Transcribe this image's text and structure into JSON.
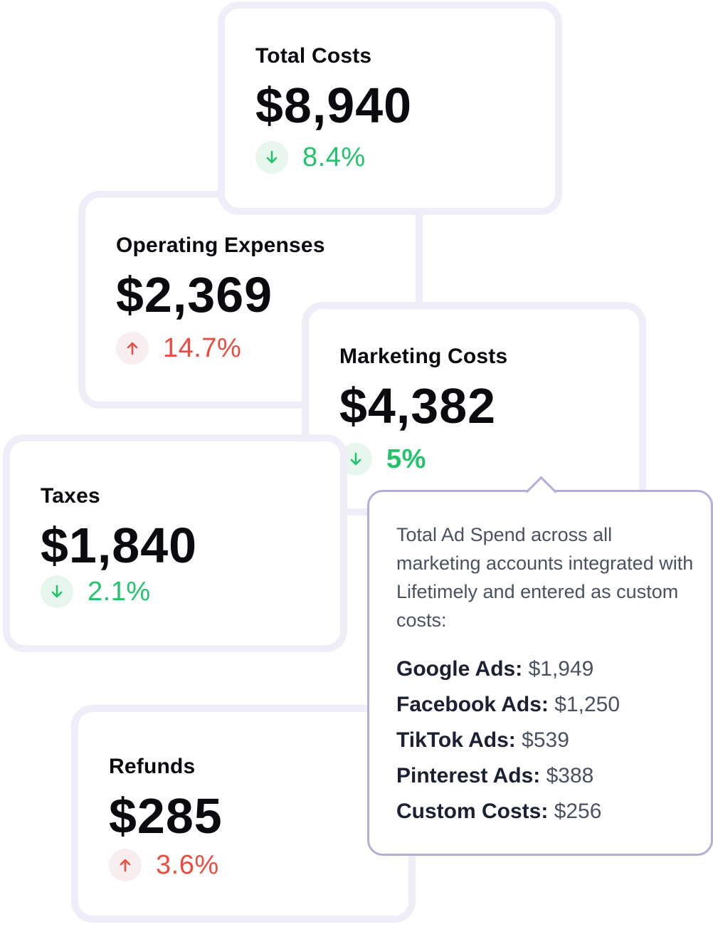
{
  "cards": {
    "total": {
      "title": "Total Costs",
      "value": "$8,940",
      "trend_direction": "down",
      "trend_percent": "8.4%"
    },
    "operating": {
      "title": "Operating Expenses",
      "value": "$2,369",
      "trend_direction": "up",
      "trend_percent": "14.7%"
    },
    "marketing": {
      "title": "Marketing Costs",
      "value": "$4,382",
      "trend_direction": "down",
      "trend_percent": "5%"
    },
    "taxes": {
      "title": "Taxes",
      "value": "$1,840",
      "trend_direction": "down",
      "trend_percent": "2.1%"
    },
    "refunds": {
      "title": "Refunds",
      "value": "$285",
      "trend_direction": "up",
      "trend_percent": "3.6%"
    }
  },
  "tooltip": {
    "description": "Total Ad Spend across all marketing accounts integrated with Lifetimely and entered as custom costs:",
    "items": [
      {
        "label": "Google Ads:",
        "value": "$1,949"
      },
      {
        "label": "Facebook Ads:",
        "value": "$1,250"
      },
      {
        "label": "TikTok Ads:",
        "value": "$539"
      },
      {
        "label": "Pinterest Ads:",
        "value": "$388"
      },
      {
        "label": "Custom Costs:",
        "value": "$256"
      }
    ]
  },
  "icons": {
    "trend_down": "arrow-down-icon",
    "trend_up": "arrow-up-icon"
  },
  "colors": {
    "positive_trend": "#22c36b",
    "negative_trend": "#ea4d3f",
    "card_border": "#efeef8",
    "tooltip_border": "#b7acd6"
  }
}
